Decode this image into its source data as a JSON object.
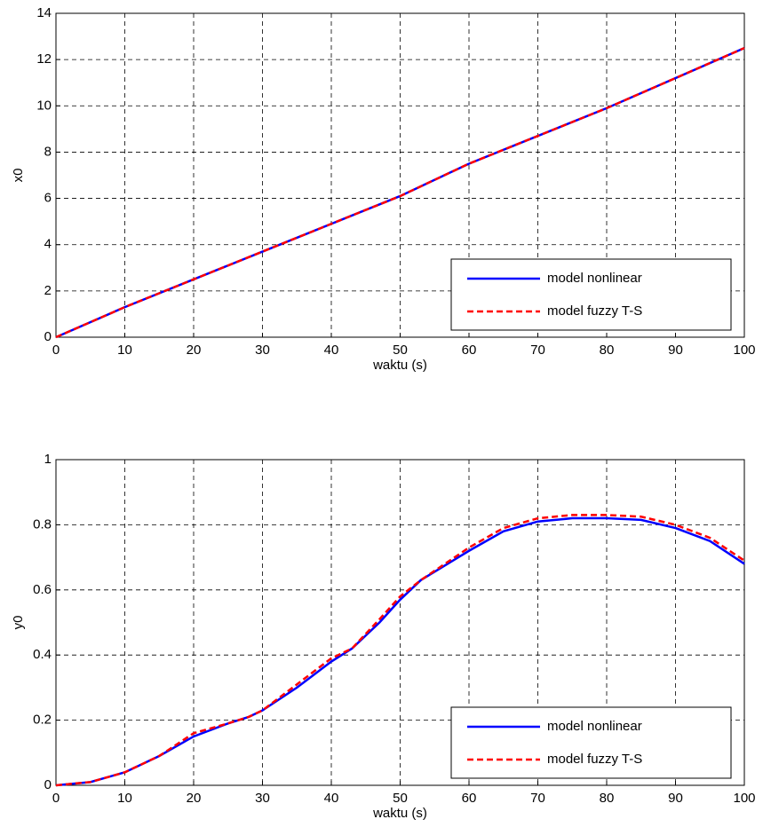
{
  "chart_data": [
    {
      "type": "line",
      "xlabel": "waktu (s)",
      "ylabel": "x0",
      "x": [
        0,
        10,
        20,
        30,
        40,
        50,
        60,
        70,
        80,
        90,
        100
      ],
      "series": [
        {
          "name": "model nonlinear",
          "color": "#0000ff",
          "style": "solid",
          "values": [
            0,
            1.3,
            2.5,
            3.7,
            4.9,
            6.1,
            7.5,
            8.7,
            9.9,
            11.2,
            12.5
          ]
        },
        {
          "name": "model fuzzy T-S",
          "color": "#ff0000",
          "style": "dashed",
          "values": [
            0,
            1.3,
            2.5,
            3.7,
            4.9,
            6.1,
            7.5,
            8.7,
            9.9,
            11.2,
            12.5
          ]
        }
      ],
      "xlim": [
        0,
        100
      ],
      "xticks": [
        0,
        10,
        20,
        30,
        40,
        50,
        60,
        70,
        80,
        90,
        100
      ],
      "ylim": [
        0,
        14
      ],
      "yticks": [
        0,
        2,
        4,
        6,
        8,
        10,
        12,
        14
      ],
      "grid": true,
      "legend": "lower right"
    },
    {
      "type": "line",
      "xlabel": "waktu (s)",
      "ylabel": "y0",
      "x": [
        0,
        5,
        10,
        15,
        20,
        25,
        28,
        30,
        35,
        40,
        43,
        47,
        50,
        53,
        60,
        65,
        70,
        75,
        80,
        85,
        90,
        95,
        100
      ],
      "series": [
        {
          "name": "model nonlinear",
          "color": "#0000ff",
          "style": "solid",
          "values": [
            0,
            0.01,
            0.04,
            0.09,
            0.15,
            0.19,
            0.21,
            0.23,
            0.3,
            0.38,
            0.42,
            0.5,
            0.57,
            0.63,
            0.72,
            0.78,
            0.81,
            0.82,
            0.82,
            0.815,
            0.79,
            0.75,
            0.68
          ]
        },
        {
          "name": "model fuzzy T-S",
          "color": "#ff0000",
          "style": "dashed",
          "values": [
            0,
            0.01,
            0.04,
            0.09,
            0.16,
            0.19,
            0.21,
            0.23,
            0.31,
            0.39,
            0.42,
            0.51,
            0.58,
            0.63,
            0.73,
            0.79,
            0.82,
            0.83,
            0.83,
            0.825,
            0.8,
            0.76,
            0.69
          ]
        }
      ],
      "xlim": [
        0,
        100
      ],
      "xticks": [
        0,
        10,
        20,
        30,
        40,
        50,
        60,
        70,
        80,
        90,
        100
      ],
      "ylim": [
        0,
        1
      ],
      "yticks": [
        0,
        0.2,
        0.4,
        0.6,
        0.8,
        1
      ],
      "grid": true,
      "legend": "lower right"
    }
  ]
}
